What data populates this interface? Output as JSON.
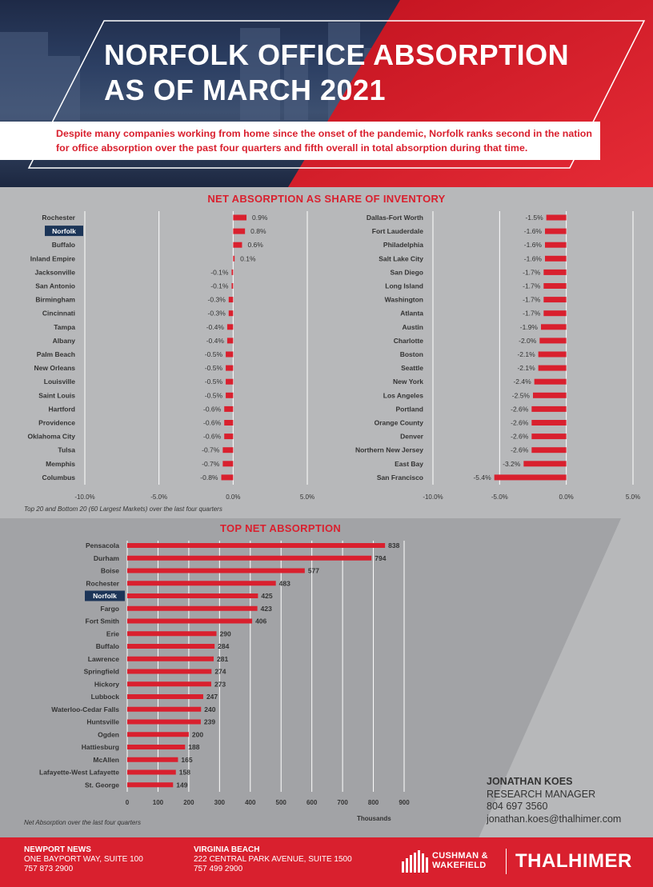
{
  "header": {
    "title_line1": "NORFOLK OFFICE ABSORPTION",
    "title_line2": "AS OF MARCH 2021",
    "intro": "Despite many companies working from home since the onset of the pandemic, Norfolk ranks second in the nation for office absorption over the past four quarters and fifth overall in total absorption during that time."
  },
  "colors": {
    "accent_red": "#d9202e",
    "navy": "#1c3558",
    "gray_panel": "#b7b8ba",
    "dark_gray_panel": "#a2a3a6"
  },
  "chart_data": [
    {
      "type": "bar",
      "orientation": "horizontal",
      "title": "NET ABSORPTION AS SHARE OF INVENTORY",
      "footnote": "Top 20 and Bottom 20 (60 Largest Markets) over the last four quarters",
      "xlim": [
        -10,
        5
      ],
      "xticks": [
        "-10.0%",
        "-5.0%",
        "0.0%",
        "5.0%"
      ],
      "highlight": "Norfolk",
      "panels": [
        {
          "categories": [
            "Rochester",
            "Norfolk",
            "Buffalo",
            "Inland Empire",
            "Jacksonville",
            "San Antonio",
            "Birmingham",
            "Cincinnati",
            "Tampa",
            "Albany",
            "Palm Beach",
            "New Orleans",
            "Louisville",
            "Saint Louis",
            "Hartford",
            "Providence",
            "Oklahoma City",
            "Tulsa",
            "Memphis",
            "Columbus"
          ],
          "values": [
            0.9,
            0.8,
            0.6,
            0.1,
            -0.1,
            -0.1,
            -0.3,
            -0.3,
            -0.4,
            -0.4,
            -0.5,
            -0.5,
            -0.5,
            -0.5,
            -0.6,
            -0.6,
            -0.6,
            -0.7,
            -0.7,
            -0.8
          ],
          "labels": [
            "0.9%",
            "0.8%",
            "0.6%",
            "0.1%",
            "-0.1%",
            "-0.1%",
            "-0.3%",
            "-0.3%",
            "-0.4%",
            "-0.4%",
            "-0.5%",
            "-0.5%",
            "-0.5%",
            "-0.5%",
            "-0.6%",
            "-0.6%",
            "-0.6%",
            "-0.7%",
            "-0.7%",
            "-0.8%"
          ]
        },
        {
          "categories": [
            "Dallas-Fort Worth",
            "Fort Lauderdale",
            "Philadelphia",
            "Salt Lake City",
            "San Diego",
            "Long Island",
            "Washington",
            "Atlanta",
            "Austin",
            "Charlotte",
            "Boston",
            "Seattle",
            "New York",
            "Los Angeles",
            "Portland",
            "Orange County",
            "Denver",
            "Northern New Jersey",
            "East Bay",
            "San Francisco"
          ],
          "values": [
            -1.5,
            -1.6,
            -1.6,
            -1.6,
            -1.7,
            -1.7,
            -1.7,
            -1.7,
            -1.9,
            -2.0,
            -2.1,
            -2.1,
            -2.4,
            -2.5,
            -2.6,
            -2.6,
            -2.6,
            -2.6,
            -3.2,
            -5.4
          ],
          "labels": [
            "-1.5%",
            "-1.6%",
            "-1.6%",
            "-1.6%",
            "-1.7%",
            "-1.7%",
            "-1.7%",
            "-1.7%",
            "-1.9%",
            "-2.0%",
            "-2.1%",
            "-2.1%",
            "-2.4%",
            "-2.5%",
            "-2.6%",
            "-2.6%",
            "-2.6%",
            "-2.6%",
            "-3.2%",
            "-5.4%"
          ]
        }
      ]
    },
    {
      "type": "bar",
      "orientation": "horizontal",
      "title": "TOP NET ABSORPTION",
      "footnote": "Net Absorption over the last four quarters",
      "xlabel": "Thousands",
      "xlim": [
        0,
        900
      ],
      "xticks": [
        "0",
        "100",
        "200",
        "300",
        "400",
        "500",
        "600",
        "700",
        "800",
        "900"
      ],
      "highlight": "Norfolk",
      "categories": [
        "Pensacola",
        "Durham",
        "Boise",
        "Rochester",
        "Norfolk",
        "Fargo",
        "Fort Smith",
        "Erie",
        "Buffalo",
        "Lawrence",
        "Springfield",
        "Hickory",
        "Lubbock",
        "Waterloo-Cedar Falls",
        "Huntsville",
        "Ogden",
        "Hattiesburg",
        "McAllen",
        "Lafayette-West Lafayette",
        "St. George"
      ],
      "values": [
        838,
        794,
        577,
        483,
        425,
        423,
        406,
        290,
        284,
        281,
        274,
        273,
        247,
        240,
        239,
        200,
        188,
        165,
        158,
        149
      ]
    }
  ],
  "contact": {
    "name": "JONATHAN KOES",
    "role": "RESEARCH MANAGER",
    "phone": "804 697 3560",
    "email": "jonathan.koes@thalhimer.com"
  },
  "footer": {
    "offices": [
      {
        "name": "NEWPORT NEWS",
        "address": "ONE BAYPORT WAY, SUITE 100",
        "phone": "757 873 2900"
      },
      {
        "name": "VIRGINIA BEACH",
        "address": "222 CENTRAL PARK AVENUE, SUITE 1500",
        "phone": "757 499 2900"
      }
    ],
    "logo_cw_line1": "CUSHMAN &",
    "logo_cw_line2": "WAKEFIELD",
    "logo_thalhimer": "THALHIMER"
  }
}
